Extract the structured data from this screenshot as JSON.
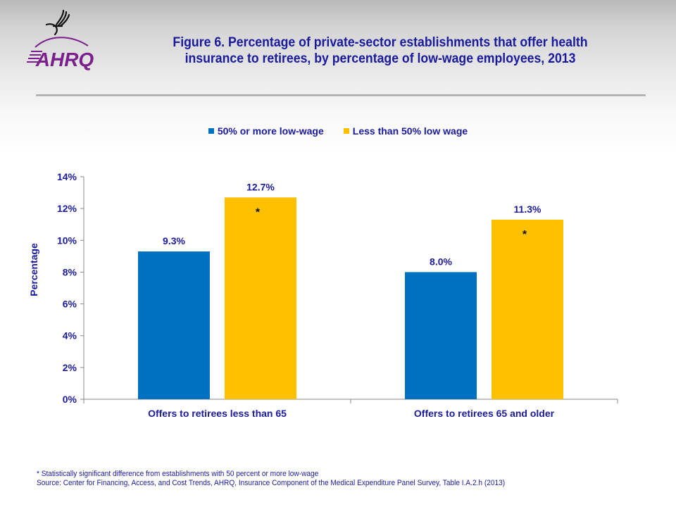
{
  "header": {
    "logo_text": "AHRQ",
    "logo_icon": "hhs-eagle-icon",
    "title_line1": "Figure 6. Percentage of private-sector establishments  that offer health",
    "title_line2": "insurance to retirees, by percentage of low-wage employees, 2013"
  },
  "colors": {
    "series1": "#0070C0",
    "series2": "#FFC000",
    "text": "#1A1A9C",
    "axis": "#888888",
    "logo_purple": "#7A1F8C"
  },
  "chart_data": {
    "type": "bar",
    "title": "Figure 6. Percentage of private-sector establishments that offer health insurance to retirees, by percentage of low-wage employees, 2013",
    "xlabel": "",
    "ylabel": "Percentage",
    "ylim": [
      0,
      14
    ],
    "yticks": [
      0,
      2,
      4,
      6,
      8,
      10,
      12,
      14
    ],
    "ytick_labels": [
      "0%",
      "2%",
      "4%",
      "6%",
      "8%",
      "10%",
      "12%",
      "14%"
    ],
    "categories": [
      "Offers to retirees less than 65",
      "Offers to retirees 65 and older"
    ],
    "series": [
      {
        "name": "50% or more low-wage",
        "values": [
          9.3,
          8.0
        ],
        "labels": [
          "9.3%",
          "8.0%"
        ],
        "significance": [
          "",
          ""
        ]
      },
      {
        "name": "Less than 50% low wage",
        "values": [
          12.7,
          11.3
        ],
        "labels": [
          "12.7%",
          "11.3%"
        ],
        "significance": [
          "*",
          "*"
        ]
      }
    ],
    "legend_position": "top",
    "grid": false
  },
  "footnotes": {
    "significance": "* Statistically significant difference from establishments with 50 percent or more low-wage",
    "source": "Source: Center for Financing, Access, and Cost Trends, AHRQ, Insurance Component of the Medical Expenditure Panel Survey,  Table I.A.2.h  (2013)"
  }
}
